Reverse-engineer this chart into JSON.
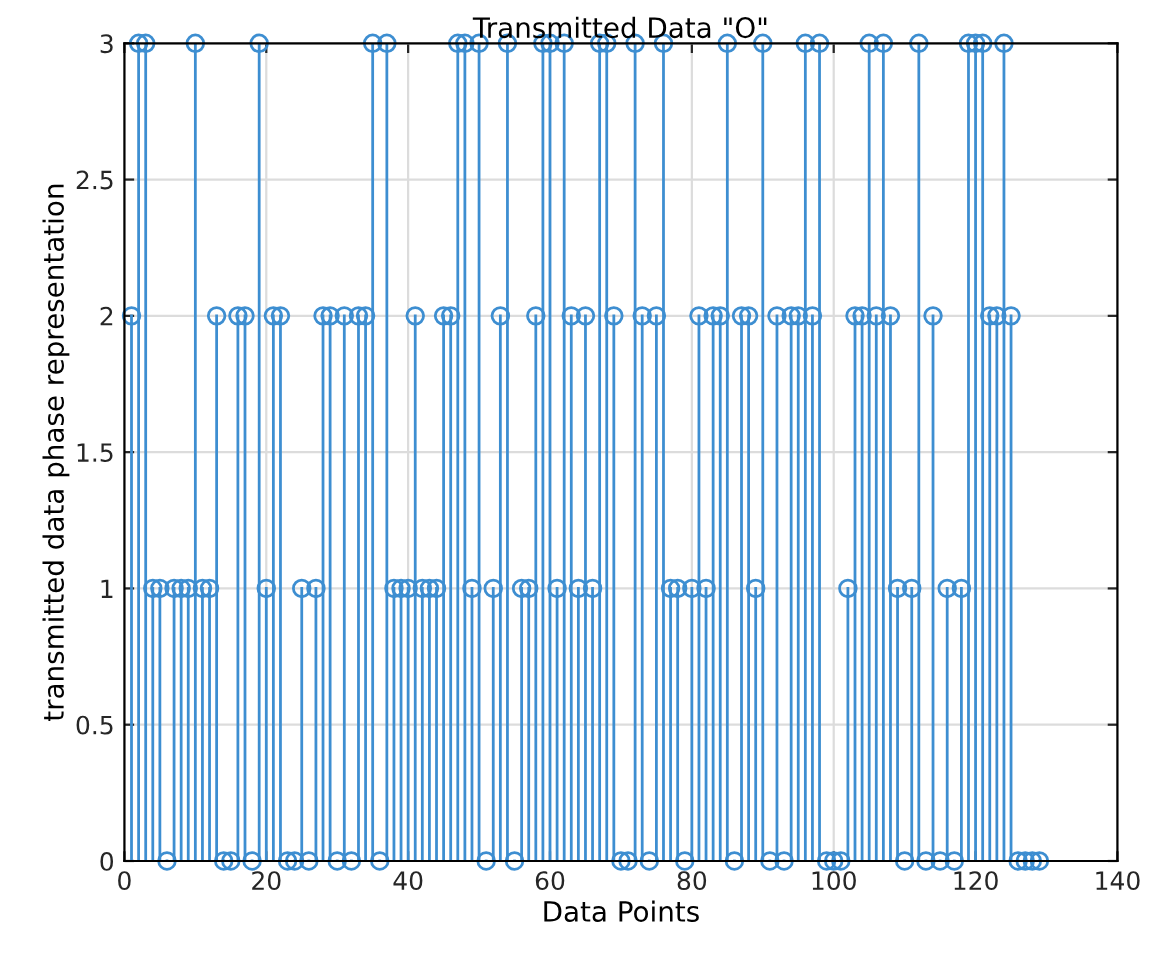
{
  "chart_data": {
    "type": "lollipop",
    "title": "Transmitted Data \"O\"",
    "xlabel": "Data Points",
    "ylabel": "transmitted data phase representation",
    "x": [
      1,
      2,
      3,
      4,
      5,
      6,
      7,
      8,
      9,
      10,
      11,
      12,
      13,
      14,
      15,
      16,
      17,
      18,
      19,
      20,
      21,
      22,
      23,
      24,
      25,
      26,
      27,
      28,
      29,
      30,
      31,
      32,
      33,
      34,
      35,
      36,
      37,
      38,
      39,
      40,
      41,
      42,
      43,
      44,
      45,
      46,
      47,
      48,
      49,
      50,
      51,
      52,
      53,
      54,
      55,
      56,
      57,
      58,
      59,
      60,
      61,
      62,
      63,
      64,
      65,
      66,
      67,
      68,
      69,
      70,
      71,
      72,
      73,
      74,
      75,
      76,
      77,
      78,
      79,
      80,
      81,
      82,
      83,
      84,
      85,
      86,
      87,
      88,
      89,
      90,
      91,
      92,
      93,
      94,
      95,
      96,
      97,
      98,
      99,
      100,
      101,
      102,
      103,
      104,
      105,
      106,
      107,
      108,
      109,
      110,
      111,
      112,
      113,
      114,
      115,
      116,
      117,
      118,
      119,
      120,
      121,
      122,
      123,
      124,
      125,
      126,
      127,
      128,
      129
    ],
    "values": [
      2,
      3,
      3,
      1,
      1,
      0,
      1,
      1,
      1,
      3,
      1,
      1,
      2,
      0,
      0,
      2,
      2,
      0,
      3,
      1,
      2,
      2,
      0,
      0,
      1,
      0,
      1,
      2,
      2,
      0,
      2,
      0,
      2,
      2,
      3,
      0,
      3,
      1,
      1,
      1,
      2,
      1,
      1,
      1,
      2,
      2,
      3,
      3,
      1,
      3,
      0,
      1,
      2,
      3,
      0,
      1,
      1,
      2,
      3,
      3,
      1,
      3,
      2,
      1,
      2,
      1,
      3,
      3,
      2,
      0,
      0,
      3,
      2,
      0,
      2,
      3,
      1,
      1,
      0,
      1,
      2,
      1,
      2,
      2,
      3,
      0,
      2,
      2,
      1,
      3,
      0,
      2,
      0,
      2,
      2,
      3,
      2,
      3,
      0,
      0,
      0,
      1,
      2,
      2,
      3,
      2,
      3,
      2,
      1,
      0,
      1,
      3,
      0,
      2,
      0,
      1,
      0,
      1,
      3,
      3,
      3,
      2,
      2,
      3,
      2,
      0,
      0,
      0,
      0
    ],
    "color": "#3d8ed1",
    "marker": "circle",
    "line_style": "solid",
    "xlim": [
      0,
      140
    ],
    "xticks": [
      0,
      20,
      40,
      60,
      80,
      100,
      120,
      140
    ],
    "ylim": [
      0,
      3
    ],
    "yticks": [
      0,
      0.5,
      1,
      1.5,
      2,
      2.5,
      3
    ],
    "grid": true
  }
}
